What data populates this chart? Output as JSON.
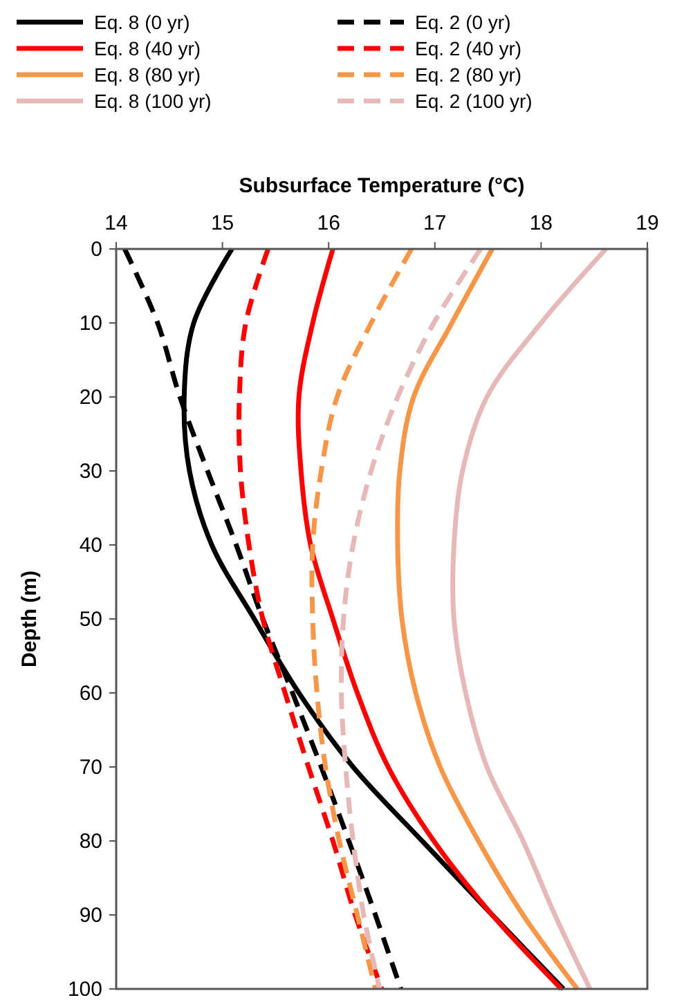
{
  "chart_data": {
    "type": "line",
    "xlabel": "Subsurface Temperature (°C)",
    "ylabel": "Depth (m)",
    "xlim": [
      14,
      19
    ],
    "xticks": [
      14,
      15,
      16,
      17,
      18,
      19
    ],
    "ylim": [
      100,
      0
    ],
    "yticks": [
      0,
      10,
      20,
      30,
      40,
      50,
      60,
      70,
      80,
      90,
      100
    ],
    "grid": false,
    "legend": "top",
    "series": [
      {
        "name": "Eq. 8 (0 yr)",
        "color": "#000000",
        "line_style": "solid",
        "x": [
          15.09,
          14.73,
          14.64,
          14.69,
          14.9,
          15.3,
          15.72,
          16.23,
          16.88,
          17.54,
          18.21
        ],
        "values": [
          0,
          10,
          20,
          30,
          40,
          50,
          60,
          70,
          80,
          90,
          100
        ]
      },
      {
        "name": "Eq. 2 (0 yr)",
        "color": "#000000",
        "line_style": "dashed",
        "x": [
          14.08,
          14.39,
          14.6,
          14.86,
          15.13,
          15.38,
          15.66,
          15.93,
          16.19,
          16.44,
          16.68
        ],
        "values": [
          0,
          10,
          20,
          30,
          40,
          50,
          60,
          70,
          80,
          90,
          100
        ]
      },
      {
        "name": "Eq. 8 (40 yr)",
        "color": "#ff0000",
        "line_style": "solid",
        "x": [
          16.04,
          15.85,
          15.72,
          15.74,
          15.83,
          16.04,
          16.27,
          16.56,
          16.99,
          17.54,
          18.19
        ],
        "values": [
          0,
          10,
          20,
          30,
          40,
          50,
          60,
          70,
          80,
          90,
          100
        ]
      },
      {
        "name": "Eq. 2 (40 yr)",
        "color": "#ff0000",
        "line_style": "dashed",
        "x": [
          15.43,
          15.22,
          15.16,
          15.17,
          15.25,
          15.38,
          15.59,
          15.81,
          16.04,
          16.25,
          16.5
        ],
        "values": [
          0,
          10,
          20,
          30,
          40,
          50,
          60,
          70,
          80,
          90,
          100
        ]
      },
      {
        "name": "Eq. 8 (80 yr)",
        "color": "#f79646",
        "line_style": "solid",
        "x": [
          17.54,
          17.16,
          16.8,
          16.67,
          16.65,
          16.69,
          16.82,
          17.05,
          17.41,
          17.83,
          18.34
        ],
        "values": [
          0,
          10,
          20,
          30,
          40,
          50,
          60,
          70,
          80,
          90,
          100
        ]
      },
      {
        "name": "Eq. 2 (80 yr)",
        "color": "#f79646",
        "line_style": "dashed",
        "x": [
          16.78,
          16.4,
          16.08,
          15.93,
          15.85,
          15.85,
          15.89,
          15.97,
          16.1,
          16.27,
          16.44
        ],
        "values": [
          0,
          10,
          20,
          30,
          40,
          50,
          60,
          70,
          80,
          90,
          100
        ]
      },
      {
        "name": "Eq. 8 (100 yr)",
        "color": "#e6b9b8",
        "line_style": "solid",
        "x": [
          18.61,
          18.0,
          17.49,
          17.26,
          17.18,
          17.18,
          17.29,
          17.49,
          17.83,
          18.13,
          18.46
        ],
        "values": [
          0,
          10,
          20,
          30,
          40,
          50,
          60,
          70,
          80,
          90,
          100
        ]
      },
      {
        "name": "Eq. 2 (100 yr)",
        "color": "#e6b9b8",
        "line_style": "dashed",
        "x": [
          17.43,
          16.99,
          16.65,
          16.4,
          16.23,
          16.14,
          16.12,
          16.16,
          16.23,
          16.33,
          16.48
        ],
        "values": [
          0,
          10,
          20,
          30,
          40,
          50,
          60,
          70,
          80,
          90,
          100
        ]
      }
    ]
  }
}
